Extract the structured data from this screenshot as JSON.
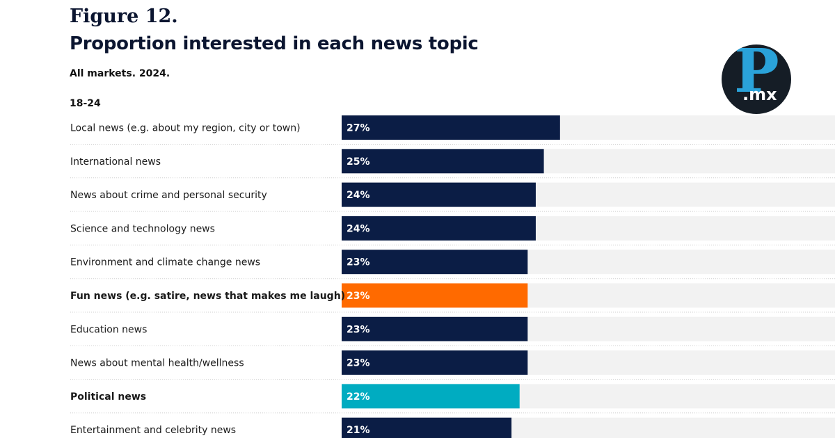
{
  "figure_label": "Figure 12.",
  "logo": {
    "letter": "P",
    "suffix": ".mx"
  },
  "colors": {
    "default": "#0b1d45",
    "highlight_orange": "#ff6a00",
    "highlight_teal": "#00acc1",
    "track": "#f2f2f2"
  },
  "chart_data": {
    "type": "bar",
    "orientation": "horizontal",
    "title": "Proportion interested in each news topic",
    "subtitle": "All markets. 2024.",
    "group": "18-24",
    "xlim": [
      0,
      61
    ],
    "categories": [
      "Local news (e.g. about my region, city or town)",
      "International news",
      "News about crime and personal security",
      "Science and technology news",
      "Environment and climate change news",
      "Fun news (e.g. satire, news that makes me laugh)",
      "Education news",
      "News about mental health/wellness",
      "Political news",
      "Entertainment and celebrity news"
    ],
    "values": [
      27,
      25,
      24,
      24,
      23,
      23,
      23,
      23,
      22,
      21
    ],
    "value_labels": [
      "27%",
      "25%",
      "24%",
      "24%",
      "23%",
      "23%",
      "23%",
      "23%",
      "22%",
      "21%"
    ],
    "highlight": [
      "none",
      "none",
      "none",
      "none",
      "none",
      "orange",
      "none",
      "none",
      "teal",
      "none"
    ]
  }
}
